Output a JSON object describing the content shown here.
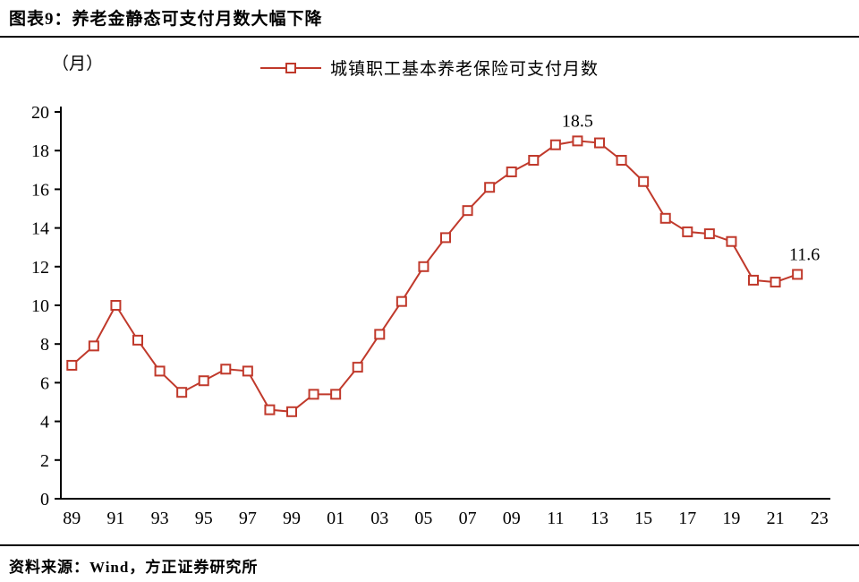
{
  "header": {
    "title": "图表9：养老金静态可支付月数大幅下降"
  },
  "unit_label": "（月）",
  "legend": {
    "label": "城镇职工基本养老保险可支付月数"
  },
  "footer": {
    "text": "资料来源：Wind，方正证券研究所"
  },
  "chart_data": {
    "type": "line",
    "title": "图表9：养老金静态可支付月数大幅下降",
    "ylabel": "（月）",
    "xlabel": "",
    "grid": false,
    "legend_position": "top-center",
    "marker": "open-square",
    "line_color": "#c0392b",
    "axis_color": "#000000",
    "ylim": [
      0,
      20
    ],
    "y_ticks": [
      0,
      2,
      4,
      6,
      8,
      10,
      12,
      14,
      16,
      18,
      20
    ],
    "xlim": [
      1988.5,
      2023.5
    ],
    "x_ticks": [
      {
        "x": 1989,
        "label": "89"
      },
      {
        "x": 1991,
        "label": "91"
      },
      {
        "x": 1993,
        "label": "93"
      },
      {
        "x": 1995,
        "label": "95"
      },
      {
        "x": 1997,
        "label": "97"
      },
      {
        "x": 1999,
        "label": "99"
      },
      {
        "x": 2001,
        "label": "01"
      },
      {
        "x": 2003,
        "label": "03"
      },
      {
        "x": 2005,
        "label": "05"
      },
      {
        "x": 2007,
        "label": "07"
      },
      {
        "x": 2009,
        "label": "09"
      },
      {
        "x": 2011,
        "label": "11"
      },
      {
        "x": 2013,
        "label": "13"
      },
      {
        "x": 2015,
        "label": "15"
      },
      {
        "x": 2017,
        "label": "17"
      },
      {
        "x": 2019,
        "label": "19"
      },
      {
        "x": 2021,
        "label": "21"
      },
      {
        "x": 2023,
        "label": "23"
      }
    ],
    "series": [
      {
        "name": "城镇职工基本养老保险可支付月数",
        "x": [
          1989,
          1990,
          1991,
          1992,
          1993,
          1994,
          1995,
          1996,
          1997,
          1998,
          1999,
          2000,
          2001,
          2002,
          2003,
          2004,
          2005,
          2006,
          2007,
          2008,
          2009,
          2010,
          2011,
          2012,
          2013,
          2014,
          2015,
          2016,
          2017,
          2018,
          2019,
          2020,
          2021,
          2022
        ],
        "values": [
          6.9,
          7.9,
          10.0,
          8.2,
          6.6,
          5.5,
          6.1,
          6.7,
          6.6,
          4.6,
          4.5,
          5.4,
          5.4,
          6.8,
          8.5,
          10.2,
          12.0,
          13.5,
          14.9,
          16.1,
          16.9,
          17.5,
          18.3,
          18.5,
          18.4,
          17.5,
          16.4,
          14.5,
          13.8,
          13.7,
          13.3,
          11.3,
          11.2,
          11.6
        ]
      }
    ],
    "annotations": [
      {
        "x": 2012,
        "y": 18.5,
        "label": "18.5",
        "dx": 0
      },
      {
        "x": 2022,
        "y": 11.6,
        "label": "11.6",
        "dx": 8
      }
    ]
  }
}
